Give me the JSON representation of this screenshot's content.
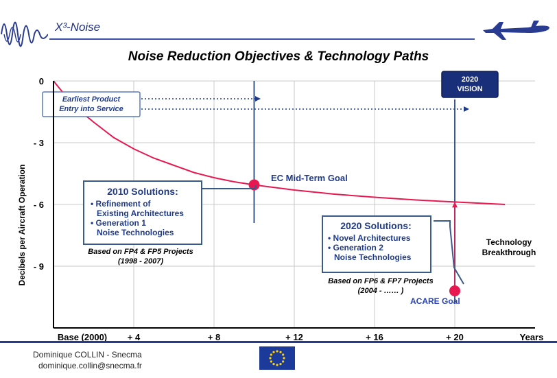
{
  "header": {
    "brand": "X³-Noise",
    "title": "Noise Reduction Objectives & Technology Paths"
  },
  "chart_data": {
    "type": "line",
    "ylabel": "Decibels per Aircraft Operation",
    "y_ticks": [
      {
        "value": 0,
        "label": "0"
      },
      {
        "value": -3,
        "label": "- 3"
      },
      {
        "value": -6,
        "label": "- 6"
      },
      {
        "value": -9,
        "label": "- 9"
      }
    ],
    "x_ticks": [
      {
        "value": 0,
        "label": "Base (2000)"
      },
      {
        "value": 4,
        "label": "+ 4"
      },
      {
        "value": 8,
        "label": "+ 8"
      },
      {
        "value": 12,
        "label": "+ 12"
      },
      {
        "value": 16,
        "label": "+ 16"
      },
      {
        "value": 20,
        "label": "+ 20"
      }
    ],
    "x_unit_label": "Years",
    "xlim": [
      0,
      24
    ],
    "ylim": [
      -12,
      0
    ],
    "grid": true,
    "series": [
      {
        "color": "#e8174f",
        "x": [
          0,
          0.5,
          1,
          1.5,
          2,
          3,
          4,
          5,
          6,
          7,
          8,
          9,
          10,
          12,
          14,
          16,
          18,
          20,
          22.5
        ],
        "y": [
          0,
          -0.6,
          -1.1,
          -1.6,
          -2.0,
          -2.75,
          -3.3,
          -3.75,
          -4.1,
          -4.45,
          -4.7,
          -4.9,
          -5.05,
          -5.3,
          -5.5,
          -5.65,
          -5.78,
          -5.88,
          -6.0
        ]
      }
    ],
    "breakthrough_path": {
      "x": [
        20,
        20
      ],
      "y": [
        -5.88,
        -10.2
      ]
    },
    "goals": [
      {
        "label": "EC Mid-Term Goal",
        "x": 10,
        "y": -5.05,
        "color": "#e8174f"
      },
      {
        "label": "ACARE Goal",
        "x": 20,
        "y": -10.2,
        "color": "#e8174f"
      }
    ],
    "annotations": {
      "entry_box": [
        "Earliest Product",
        "Entry into Service"
      ],
      "vision_box": [
        "2020",
        "VISION"
      ],
      "solutions_2010": {
        "title": "2010 Solutions:",
        "items": [
          [
            "• Refinement of",
            "Existing Architectures"
          ],
          [
            "• Generation 1",
            "Noise Technologies"
          ]
        ],
        "note": [
          "Based on FP4 & FP5  Projects",
          "(1998 - 2007)"
        ]
      },
      "solutions_2020": {
        "title": "2020 Solutions:",
        "items": [
          [
            "• Novel Architectures"
          ],
          [
            "• Generation 2",
            "Noise Technologies"
          ]
        ],
        "note": [
          "Based on FP6 & FP7 Projects",
          "(2004 - …… )"
        ]
      },
      "breakthrough": [
        "Technology",
        "Breakthrough"
      ]
    }
  },
  "footer": {
    "author": "Dominique COLLIN - Snecma",
    "email": "dominique.collin@snecma.fr"
  }
}
